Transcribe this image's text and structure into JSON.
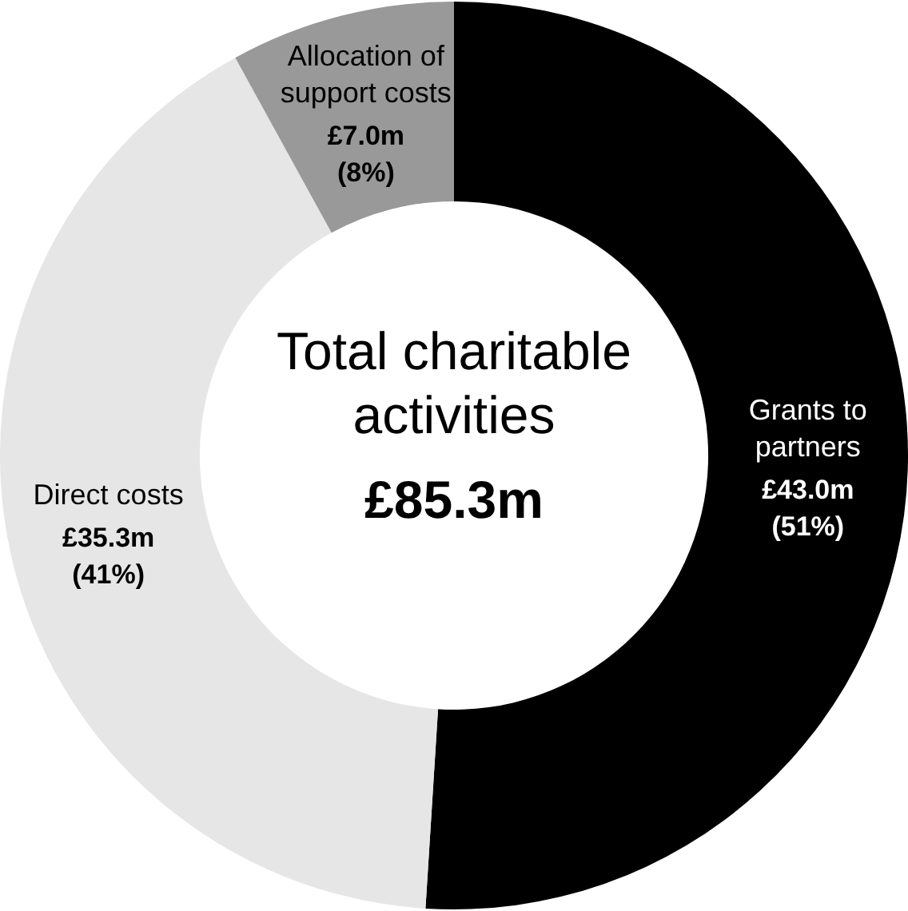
{
  "chart_data": {
    "type": "donut",
    "categories": [
      "Grants to partners",
      "Direct costs",
      "Allocation of support costs"
    ],
    "values": [
      51,
      41,
      8
    ],
    "colors": [
      "#000000",
      "#e6e6e6",
      "#999999"
    ],
    "value_labels": [
      "£43.0m (51%)",
      "£35.3m (41%)",
      "£7.0m (8%)"
    ],
    "annotations": [
      "Total charitable activities",
      "£85.3m"
    ],
    "legend": false
  }
}
